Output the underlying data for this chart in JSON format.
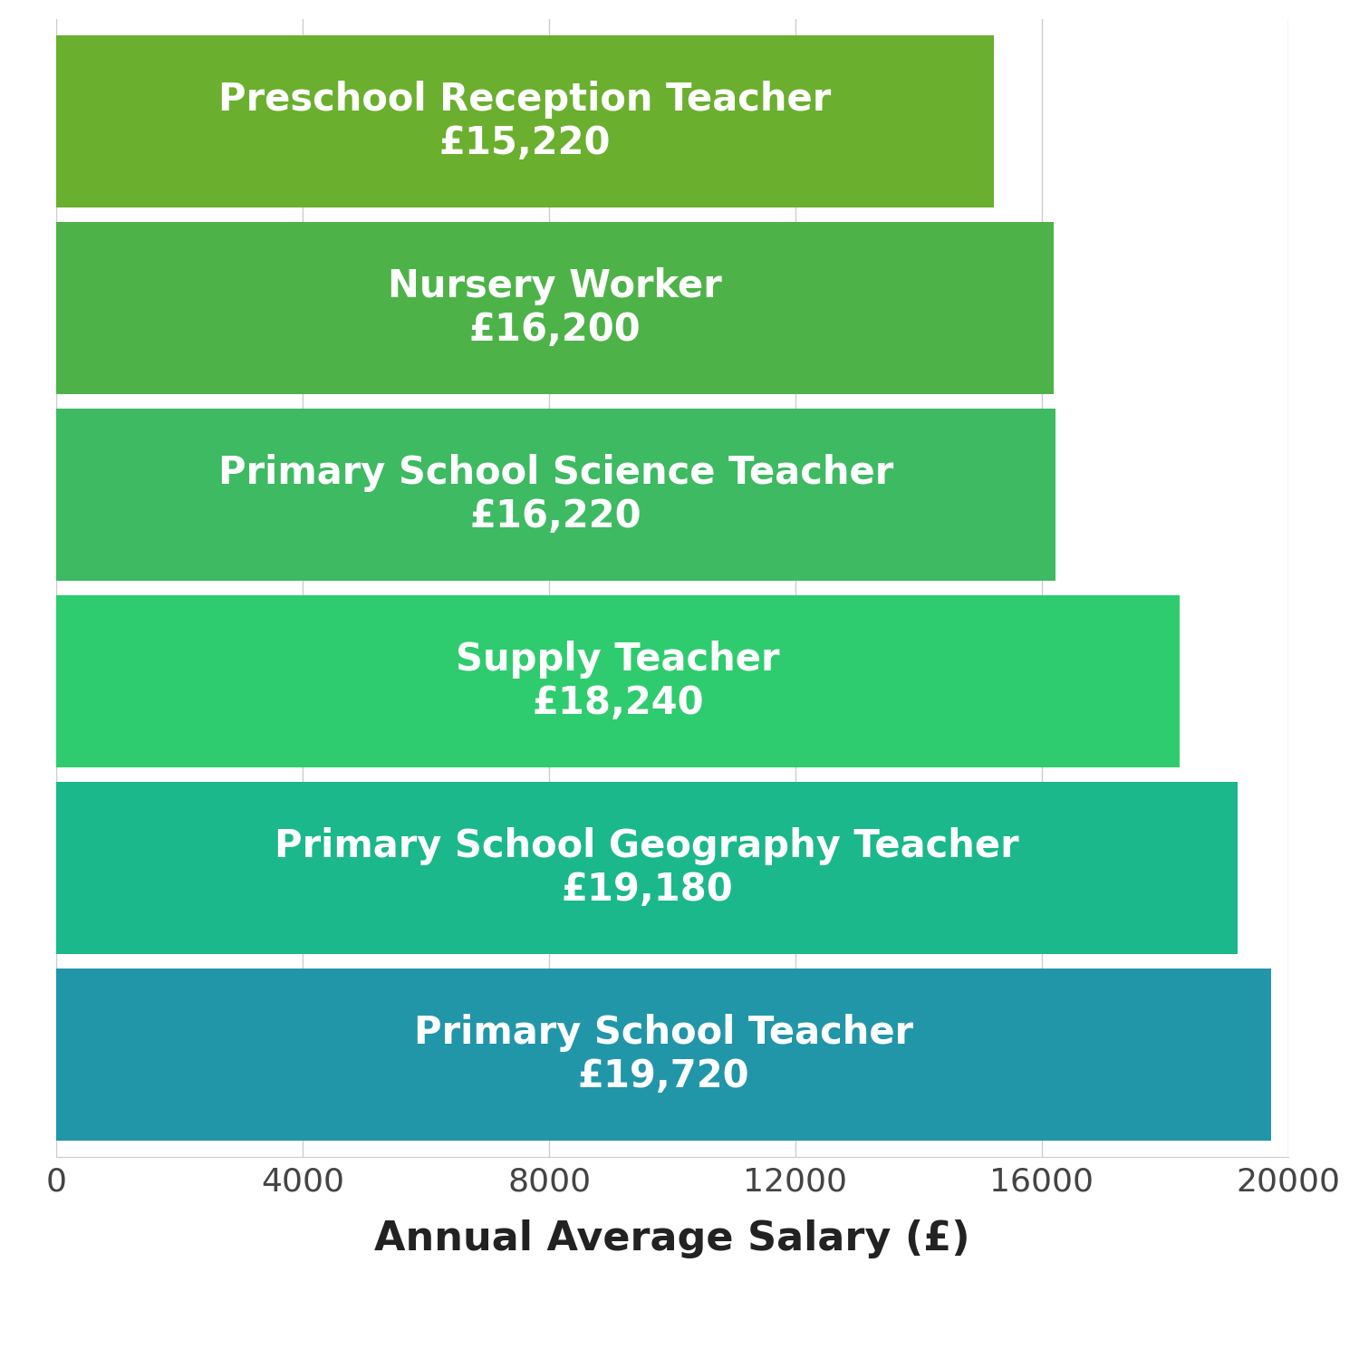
{
  "categories": [
    "Preschool Reception Teacher",
    "Nursery Worker",
    "Primary School Science Teacher",
    "Supply Teacher",
    "Primary School Geography Teacher",
    "Primary School Teacher"
  ],
  "values": [
    15220,
    16200,
    16220,
    18240,
    19180,
    19720
  ],
  "labels": [
    "Preschool Reception Teacher\n£15,220",
    "Nursery Worker\n£16,200",
    "Primary School Science Teacher\n£16,220",
    "Supply Teacher\n£18,240",
    "Primary School Geography Teacher\n£19,180",
    "Primary School Teacher\n£19,720"
  ],
  "bar_colors": [
    "#6aaf2e",
    "#4db348",
    "#3dba62",
    "#2ecc6e",
    "#1ab88a",
    "#2196a8"
  ],
  "xlabel": "Annual Average Salary (£)",
  "xlim": [
    0,
    20000
  ],
  "xticks": [
    0,
    4000,
    8000,
    12000,
    16000,
    20000
  ],
  "background_color": "#ffffff",
  "text_color": "#ffffff",
  "font_size_label": 30,
  "font_size_xlabel": 32,
  "font_size_tick": 26,
  "bar_height": 0.92
}
